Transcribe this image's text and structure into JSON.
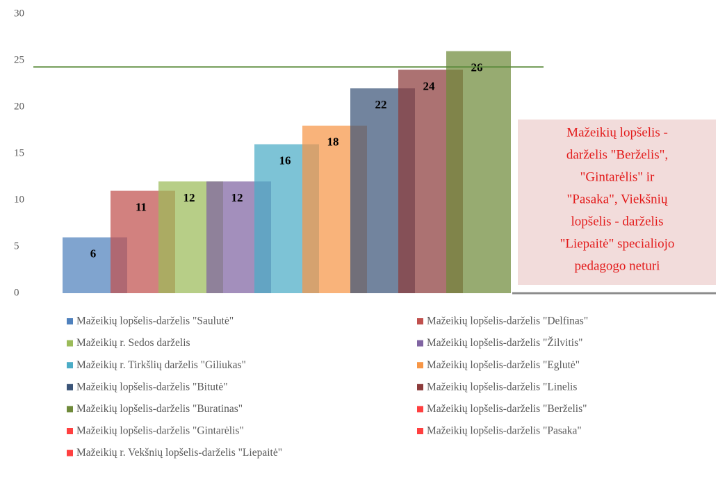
{
  "chart_data": {
    "type": "bar",
    "categories": [
      "Mažeikių lopšelis-darželis \"Saulutė\"",
      "Mažeikių lopšelis-darželis \"Delfinas\"",
      "Mažeikių r. Sedos darželis",
      "Mažeikių lopšelis-darželis \"Žilvitis\"",
      "Mažeikių r. Tirkšlių darželis \"Giliukas\"",
      "Mažeikių lopšelis-darželis \"Eglutė\"",
      "Mažeikių lopšelis-darželis \"Bitutė\"",
      "Mažeikių lopšelis-darželis \"Linelis",
      "Mažeikių lopšelis-darželis \"Buratinas\"",
      "Mažeikių lopšelis-darželis \"Berželis\"",
      "Mažeikių lopšelis-darželis \"Gintarėlis\"",
      "Mažeikių lopšelis-darželis \"Pasaka\"",
      "Mažeikių r. Vekšnių lopšelis-darželis \"Liepaitė\""
    ],
    "values": [
      6,
      11,
      12,
      12,
      16,
      18,
      22,
      24,
      26,
      null,
      null,
      null,
      null
    ],
    "colors": [
      "#4f81bd",
      "#c0504d",
      "#9bbb59",
      "#8064a2",
      "#4bacc6",
      "#f79646",
      "#3b5478",
      "#8c3b3b",
      "#6f8a3a",
      "#ff4040",
      "#ff4040",
      "#ff4040",
      "#ff4040"
    ],
    "ylim": [
      0,
      30
    ],
    "yticks": [
      0,
      5,
      10,
      15,
      20,
      25,
      30
    ],
    "reference_line": {
      "value": 24.3,
      "color": "#5a8a3a"
    },
    "annotation": [
      "Mažeikių lopšelis -",
      "darželis \"Berželis\",",
      "\"Gintarėlis\" ir",
      "\"Pasaka\", Viekšnių",
      "lopšelis - darželis",
      "\"Liepaitė\" specialiojo",
      "pedagogo neturi"
    ],
    "legend": "bottom"
  }
}
